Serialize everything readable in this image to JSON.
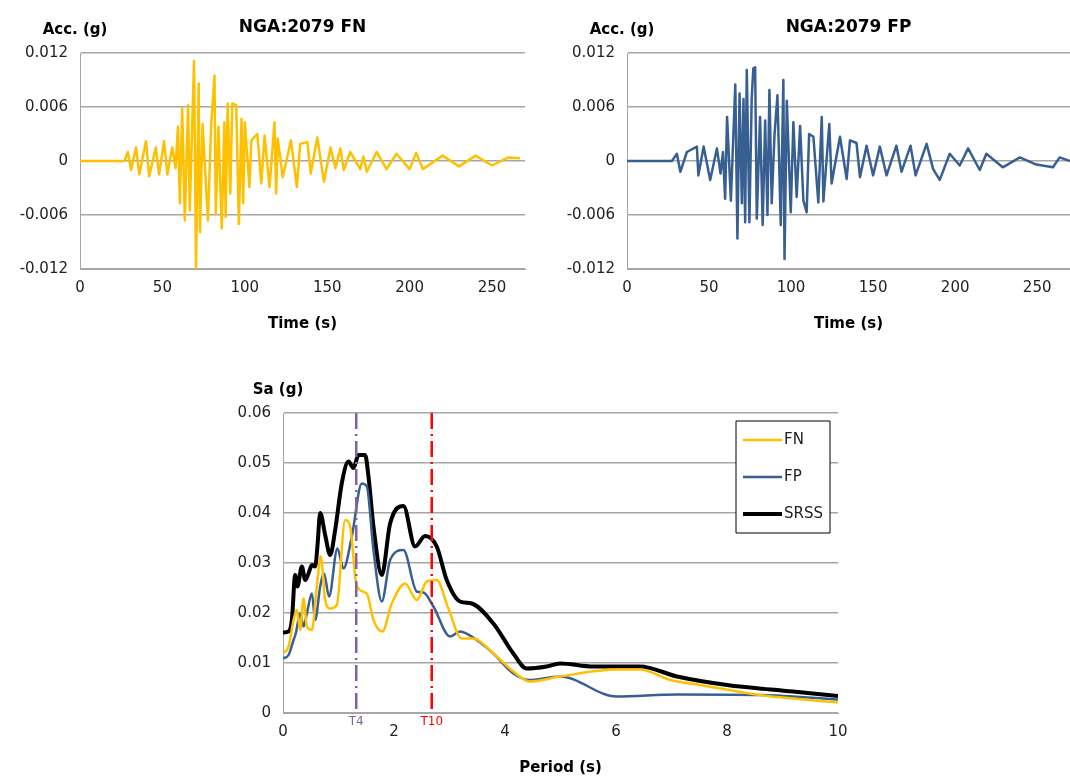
{
  "chart_data": [
    {
      "type": "line",
      "title": "NGA:2079 FN",
      "xlabel": "Time (s)",
      "ylabel": "Acc. (g)",
      "xlim": [
        0,
        270
      ],
      "xticks": [
        0,
        50,
        100,
        150,
        200,
        250
      ],
      "ylim": [
        -0.012,
        0.012
      ],
      "yticks": [
        -0.012,
        -0.006,
        0,
        0.006,
        0.012
      ],
      "grid": "y",
      "marker": "none",
      "line_style": "solid",
      "series": [
        {
          "color": "#ffc000",
          "x": [
            0,
            27,
            29,
            31,
            34,
            36,
            40,
            42,
            46,
            48,
            51,
            53,
            56,
            58,
            59.4,
            60.6,
            62,
            63.6,
            65.6,
            66.6,
            69.2,
            70.4,
            72,
            72.8,
            74.4,
            77.6,
            79.6,
            81.6,
            82.4,
            84,
            86,
            87.6,
            88.4,
            89.6,
            91.2,
            92.4,
            94.8,
            96.4,
            98,
            99,
            100,
            102.8,
            104,
            107.6,
            110,
            112,
            115,
            118,
            119,
            120,
            123,
            128,
            131.6,
            133.6,
            138,
            140,
            144,
            148,
            152,
            155,
            158,
            160,
            164,
            170,
            172,
            174,
            180,
            186,
            192,
            200,
            204,
            208,
            220,
            230,
            240,
            250,
            260,
            267
          ],
          "values": [
            0,
            0,
            0.001,
            -0.001,
            0.0015,
            -0.0015,
            0.0022,
            -0.0017,
            0.0015,
            -0.0015,
            0.0022,
            -0.0015,
            0.0015,
            -0.0008,
            0.0038,
            -0.0047,
            0.0058,
            -0.0066,
            0.0062,
            -0.0055,
            0.0111,
            -0.012,
            0.0086,
            -0.0079,
            0.0041,
            -0.0066,
            0.0041,
            0.0095,
            -0.0059,
            0.0038,
            -0.0075,
            0.0043,
            -0.0062,
            0.0064,
            -0.0036,
            0.0064,
            0.0062,
            -0.007,
            0.0047,
            -0.0047,
            0.0043,
            -0.0029,
            0.0023,
            0.003,
            -0.0025,
            0.0028,
            -0.0029,
            0.0043,
            -0.0036,
            0.0025,
            -0.0018,
            0.0023,
            -0.0029,
            0.0019,
            0.0021,
            -0.0014,
            0.0026,
            -0.0023,
            0.0015,
            -0.0008,
            0.0014,
            -0.001,
            0.001,
            -0.0009,
            0.0005,
            -0.0012,
            0.001,
            -0.0009,
            0.0008,
            -0.0009,
            0.0009,
            -0.0009,
            0.0006,
            -0.0006,
            0.0006,
            -0.0005,
            0.0004,
            0.0003
          ]
        }
      ]
    },
    {
      "type": "line",
      "title": "NGA:2079 FP",
      "xlabel": "Time (s)",
      "ylabel": "Acc. (g)",
      "xlim": [
        0,
        270
      ],
      "xticks": [
        0,
        50,
        100,
        150,
        200,
        250
      ],
      "ylim": [
        -0.012,
        0.012
      ],
      "yticks": [
        -0.012,
        -0.006,
        0,
        0.006,
        0.012
      ],
      "grid": "y",
      "marker": "none",
      "line_style": "solid",
      "series": [
        {
          "color": "#375f92",
          "x": [
            0,
            27.4,
            30.4,
            32.5,
            36.5,
            42.6,
            43.5,
            46.7,
            50.7,
            54.8,
            57,
            58.5,
            59.8,
            61,
            63.3,
            66,
            67.3,
            68.6,
            70,
            71,
            72,
            73,
            74.6,
            76,
            77,
            78.1,
            79.1,
            81.1,
            82.7,
            84.2,
            85.6,
            86.8,
            88.2,
            89.9,
            91.7,
            93.7,
            95.3,
            96,
            97.4,
            99.8,
            101.4,
            103.4,
            105.5,
            107.5,
            109.5,
            111,
            113.6,
            116.6,
            118.7,
            119.7,
            123.3,
            124.7,
            129.8,
            133.9,
            135.9,
            139.9,
            142,
            146,
            150,
            154.1,
            158.2,
            164.2,
            167.3,
            172.8,
            175.9,
            182.6,
            186.6,
            190.6,
            196.7,
            202.8,
            207.9,
            215,
            219,
            229,
            239.4,
            249.5,
            259.6,
            263.7,
            270
          ],
          "values": [
            0,
            0,
            0.0008,
            -0.0012,
            0.001,
            0.0016,
            -0.0016,
            0.0016,
            -0.0021,
            0.0014,
            -0.0014,
            0.001,
            -0.0042,
            0.0049,
            -0.0044,
            0.0085,
            -0.0086,
            0.0075,
            -0.0047,
            0.0069,
            -0.0068,
            0.0101,
            -0.0068,
            0.0069,
            0.0103,
            0.0104,
            -0.0064,
            0.0049,
            -0.0071,
            0.0045,
            -0.006,
            0.0079,
            -0.0047,
            0.0029,
            0.0073,
            -0.0071,
            0.009,
            -0.0109,
            0.0067,
            -0.0057,
            0.0043,
            -0.004,
            0.0039,
            -0.0044,
            -0.0057,
            0.003,
            0.0027,
            -0.0046,
            0.0049,
            -0.0045,
            0.0041,
            -0.0025,
            0.0027,
            -0.002,
            0.0023,
            0.002,
            -0.0018,
            0.0017,
            -0.0016,
            0.0016,
            -0.0016,
            0.0017,
            -0.0012,
            0.0017,
            -0.0016,
            0.0019,
            -0.0009,
            -0.0021,
            0.0008,
            -0.0005,
            0.0014,
            -0.001,
            0.0008,
            -0.0007,
            0.0004,
            -0.0004,
            -0.0007,
            0.0004,
            0
          ]
        }
      ]
    },
    {
      "type": "line",
      "xlabel": "Period (s)",
      "ylabel": "Sa (g)",
      "xlim": [
        0,
        10
      ],
      "xticks": [
        0,
        2,
        4,
        6,
        8,
        10
      ],
      "ylim": [
        0,
        0.06
      ],
      "yticks": [
        0,
        0.01,
        0.02,
        0.03,
        0.04,
        0.05,
        0.06
      ],
      "grid": "y",
      "legend": "top right",
      "marker": "none",
      "line_style": "solid",
      "ref_lines": [
        {
          "axis": "x",
          "value": 1.32,
          "label": "T4",
          "color": "#8064a2",
          "line_style": "dashed"
        },
        {
          "axis": "x",
          "value": 2.68,
          "label": "T10",
          "color": "#ff0000",
          "line_style": "dashed"
        }
      ],
      "series": [
        {
          "name": "FN",
          "color": "#ffc000",
          "x": [
            0,
            0.1,
            0.19,
            0.25,
            0.31,
            0.37,
            0.43,
            0.52,
            0.61,
            0.68,
            0.76,
            0.85,
            0.97,
            1.12,
            1.21,
            1.33,
            1.51,
            1.63,
            1.79,
            1.96,
            2.2,
            2.41,
            2.59,
            2.77,
            2.98,
            3.22,
            3.43,
            3.79,
            4.15,
            4.45,
            4.99,
            6.01,
            6.43,
            6.98,
            7.52,
            8.59,
            10
          ],
          "values": [
            0.0119,
            0.0133,
            0.0186,
            0.0206,
            0.0166,
            0.0229,
            0.0173,
            0.0166,
            0.0253,
            0.0313,
            0.0226,
            0.0209,
            0.0216,
            0.0386,
            0.0373,
            0.0253,
            0.0239,
            0.0186,
            0.0163,
            0.0219,
            0.0259,
            0.0226,
            0.0263,
            0.0266,
            0.0209,
            0.0149,
            0.0149,
            0.0119,
            0.0083,
            0.0063,
            0.0073,
            0.0087,
            0.0087,
            0.0066,
            0.0056,
            0.0036,
            0.0021
          ]
        },
        {
          "name": "FP",
          "color": "#375f92",
          "x": [
            0,
            0.1,
            0.19,
            0.23,
            0.31,
            0.37,
            0.43,
            0.52,
            0.58,
            0.67,
            0.74,
            0.83,
            0.98,
            1.09,
            1.24,
            1.42,
            1.51,
            1.63,
            1.78,
            1.93,
            2.17,
            2.41,
            2.53,
            2.71,
            3.01,
            3.19,
            3.49,
            3.79,
            4.15,
            4.45,
            4.99,
            6.01,
            7.1,
            8.59,
            10
          ],
          "values": [
            0.0109,
            0.0116,
            0.0146,
            0.0159,
            0.0199,
            0.0173,
            0.0199,
            0.0239,
            0.0186,
            0.0253,
            0.0279,
            0.0233,
            0.0329,
            0.0289,
            0.0353,
            0.0459,
            0.0453,
            0.0326,
            0.0223,
            0.0306,
            0.0326,
            0.0243,
            0.0241,
            0.0213,
            0.0153,
            0.0163,
            0.0146,
            0.0119,
            0.0079,
            0.0066,
            0.0073,
            0.0033,
            0.0037,
            0.0036,
            0.0027
          ]
        },
        {
          "name": "SRSS",
          "color": "#000000",
          "x": [
            0,
            0.1,
            0.16,
            0.22,
            0.26,
            0.34,
            0.4,
            0.46,
            0.52,
            0.58,
            0.62,
            0.67,
            0.76,
            0.85,
            0.94,
            1.06,
            1.18,
            1.27,
            1.36,
            1.48,
            1.54,
            1.63,
            1.78,
            1.93,
            2.17,
            2.38,
            2.56,
            2.77,
            2.95,
            3.19,
            3.4,
            3.79,
            4.15,
            4.39,
            4.75,
            4.99,
            5.59,
            6.43,
            7.1,
            8,
            9.19,
            10
          ],
          "values": [
            0.0161,
            0.0163,
            0.0186,
            0.0276,
            0.0253,
            0.0293,
            0.0266,
            0.0279,
            0.0296,
            0.0293,
            0.0333,
            0.04,
            0.0356,
            0.0316,
            0.0366,
            0.046,
            0.0503,
            0.049,
            0.0516,
            0.0516,
            0.0473,
            0.0373,
            0.0276,
            0.0379,
            0.0414,
            0.0333,
            0.0354,
            0.0333,
            0.0266,
            0.0223,
            0.0219,
            0.0179,
            0.0119,
            0.0089,
            0.0093,
            0.0099,
            0.0093,
            0.0093,
            0.0073,
            0.0056,
            0.0043,
            0.0034
          ]
        }
      ]
    }
  ]
}
